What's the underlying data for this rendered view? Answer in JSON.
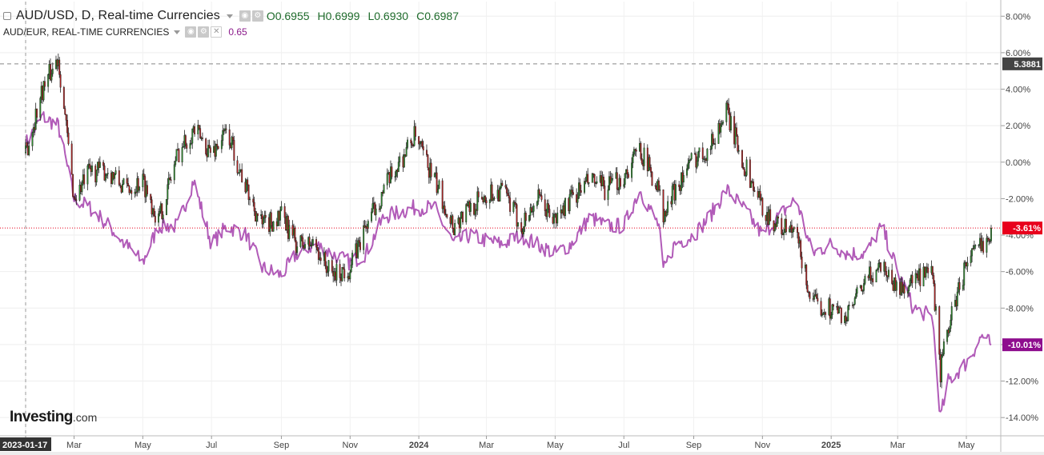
{
  "header": {
    "main_title": "AUD/USD, D, Real-time Currencies",
    "ohlc": {
      "open": "O0.6955",
      "high": "H0.6999",
      "low": "L0.6930",
      "close": "C0.6987"
    },
    "compare_title": "AUD/EUR, REAL-TIME CURRENCIES",
    "compare_value": "0.65"
  },
  "logo": {
    "main": "Investing",
    "suffix": ".com"
  },
  "colors": {
    "up": "#2e8b2e",
    "down": "#b22222",
    "compare_line": "#b15bb8",
    "last_price": "#e8001c",
    "compare_tag": "#8e0d8e",
    "hline": "#555555"
  },
  "chart_data": {
    "type": "line",
    "title": "AUD/USD, D, Real-time Currencies",
    "yaxis": {
      "ylim": [
        -15,
        8.8
      ],
      "ticks": [
        8,
        6,
        4,
        2,
        0,
        -2,
        -4,
        -6,
        -8,
        -10,
        -12,
        -14
      ],
      "tick_labels": [
        "8.00%",
        "6.00%",
        "4.00%",
        "2.00%",
        "0.00%",
        "-2.00%",
        "-4.00%",
        "-6.00%",
        "-8.00%",
        "-10.00%",
        "-12.00%",
        "-14.00%"
      ]
    },
    "xaxis": {
      "start": "2023-01-17",
      "tick_labels": [
        "2023-01-17",
        "Mar",
        "May",
        "Jul",
        "Sep",
        "Nov",
        "2024",
        "Mar",
        "May",
        "Jul",
        "Sep",
        "Nov",
        "2025",
        "Mar",
        "May"
      ],
      "tick_dates": [
        "2023-01-17",
        "2023-03-01",
        "2023-05-01",
        "2023-07-01",
        "2023-09-01",
        "2023-11-01",
        "2024-01-01",
        "2024-03-01",
        "2024-05-01",
        "2024-07-01",
        "2024-09-01",
        "2024-11-01",
        "2025-01-01",
        "2025-03-01",
        "2025-05-01"
      ],
      "end": "2025-05-23"
    },
    "series": [
      {
        "name": "AUD/USD",
        "kind": "candlestick",
        "x": [
          "2023-01-17",
          "2023-02-01",
          "2023-02-15",
          "2023-03-01",
          "2023-03-15",
          "2023-04-01",
          "2023-04-15",
          "2023-05-01",
          "2023-05-15",
          "2023-06-01",
          "2023-06-15",
          "2023-07-01",
          "2023-07-15",
          "2023-08-01",
          "2023-08-15",
          "2023-09-01",
          "2023-09-15",
          "2023-10-01",
          "2023-10-15",
          "2023-11-01",
          "2023-11-15",
          "2023-12-01",
          "2023-12-28",
          "2024-01-15",
          "2024-02-01",
          "2024-02-15",
          "2024-03-01",
          "2024-03-15",
          "2024-04-01",
          "2024-04-15",
          "2024-05-01",
          "2024-05-15",
          "2024-06-01",
          "2024-06-15",
          "2024-07-01",
          "2024-07-15",
          "2024-08-01",
          "2024-08-05",
          "2024-08-15",
          "2024-09-01",
          "2024-09-15",
          "2024-09-30",
          "2024-10-15",
          "2024-11-01",
          "2024-11-15",
          "2024-12-01",
          "2024-12-15",
          "2025-01-01",
          "2025-01-15",
          "2025-02-01",
          "2025-02-15",
          "2025-03-01",
          "2025-03-15",
          "2025-04-01",
          "2025-04-08",
          "2025-04-15",
          "2025-05-01",
          "2025-05-15",
          "2025-05-23"
        ],
        "values": [
          0.5,
          4.0,
          5.8,
          -2.0,
          -0.5,
          -0.5,
          -1.5,
          -1.0,
          -3.2,
          0.5,
          1.8,
          0.5,
          1.7,
          -1.5,
          -3.5,
          -3.0,
          -4.5,
          -4.5,
          -6.2,
          -5.8,
          -3.5,
          -1.5,
          1.4,
          -1.0,
          -3.5,
          -2.5,
          -1.8,
          -1.5,
          -3.5,
          -2.0,
          -3.2,
          -2.0,
          -1.0,
          -1.5,
          -0.8,
          0.8,
          -1.5,
          -3.2,
          -1.5,
          0.2,
          0.8,
          2.8,
          0.0,
          -2.5,
          -3.5,
          -4.0,
          -7.8,
          -8.0,
          -8.5,
          -6.5,
          -5.5,
          -7.0,
          -6.5,
          -6.2,
          -11.5,
          -9.0,
          -5.5,
          -4.5,
          -3.61
        ]
      },
      {
        "name": "AUD/EUR",
        "kind": "line",
        "x": [
          "2023-01-17",
          "2023-02-01",
          "2023-02-15",
          "2023-03-01",
          "2023-03-15",
          "2023-04-01",
          "2023-04-15",
          "2023-05-01",
          "2023-05-15",
          "2023-06-01",
          "2023-06-15",
          "2023-07-01",
          "2023-07-15",
          "2023-08-01",
          "2023-08-15",
          "2023-09-01",
          "2023-09-15",
          "2023-10-01",
          "2023-10-15",
          "2023-11-01",
          "2023-11-15",
          "2023-12-01",
          "2023-12-28",
          "2024-01-15",
          "2024-02-01",
          "2024-02-15",
          "2024-03-01",
          "2024-03-15",
          "2024-04-01",
          "2024-04-15",
          "2024-05-01",
          "2024-05-15",
          "2024-06-01",
          "2024-06-15",
          "2024-07-01",
          "2024-07-15",
          "2024-08-01",
          "2024-08-05",
          "2024-08-15",
          "2024-09-01",
          "2024-09-15",
          "2024-09-30",
          "2024-10-15",
          "2024-11-01",
          "2024-11-15",
          "2024-12-01",
          "2024-12-15",
          "2025-01-01",
          "2025-01-15",
          "2025-02-01",
          "2025-02-15",
          "2025-03-01",
          "2025-03-15",
          "2025-04-01",
          "2025-04-08",
          "2025-04-15",
          "2025-05-01",
          "2025-05-15",
          "2025-05-23"
        ],
        "values": [
          1.0,
          2.5,
          2.0,
          -2.0,
          -2.5,
          -3.5,
          -4.5,
          -5.5,
          -3.5,
          -3.5,
          -1.0,
          -4.5,
          -3.5,
          -4.0,
          -5.8,
          -6.2,
          -5.0,
          -4.5,
          -5.0,
          -5.5,
          -5.0,
          -3.0,
          -2.5,
          -2.5,
          -4.5,
          -4.0,
          -4.3,
          -4.5,
          -4.0,
          -4.5,
          -5.0,
          -4.5,
          -3.0,
          -3.5,
          -3.5,
          -1.5,
          -3.5,
          -6.0,
          -4.5,
          -4.0,
          -3.0,
          -1.5,
          -2.5,
          -4.0,
          -3.0,
          -2.0,
          -5.0,
          -4.5,
          -5.0,
          -5.0,
          -3.5,
          -6.0,
          -8.0,
          -8.5,
          -14.0,
          -12.0,
          -11.0,
          -9.5,
          -10.01
        ]
      }
    ],
    "horizontal_line": {
      "value": 5.3881,
      "label": "5.3881"
    },
    "last_value_tags": [
      {
        "series": "AUD/USD",
        "label": "-3.61%",
        "value": -3.61
      },
      {
        "series": "AUD/EUR",
        "label": "-10.01%",
        "value": -10.01
      }
    ],
    "grid": true
  }
}
